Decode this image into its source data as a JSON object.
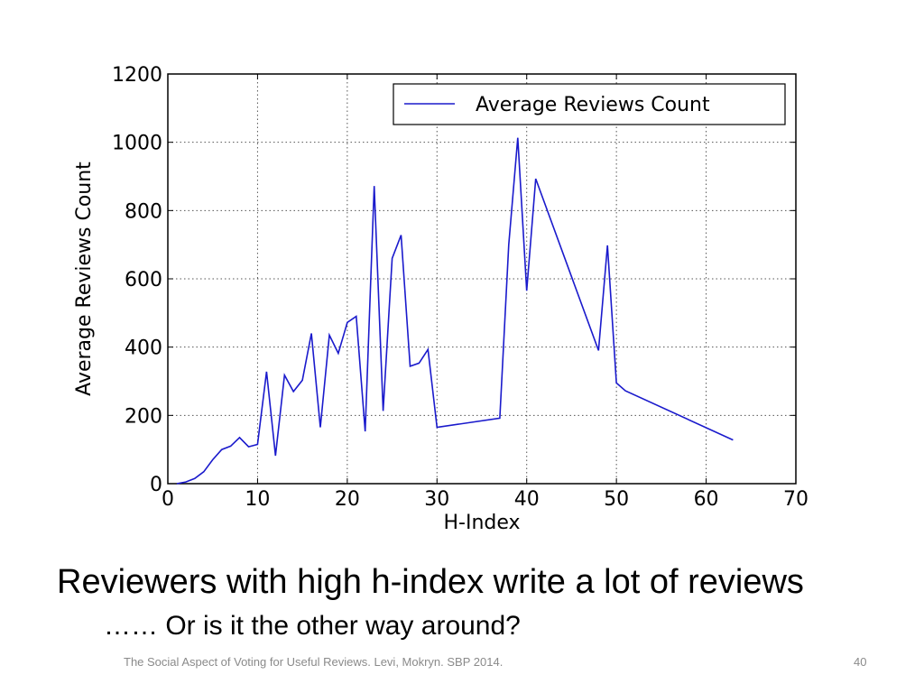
{
  "slide": {
    "headline": "Reviewers with high h-index write a lot of reviews",
    "subline": "…… Or is it the other way around?",
    "footer": "The Social Aspect of Voting for Useful Reviews. Levi, Mokryn. SBP 2014.",
    "page_number": "40"
  },
  "chart_data": {
    "type": "line",
    "title": "",
    "xlabel": "H-Index",
    "ylabel": "Average Reviews Count",
    "xlim": [
      0,
      70
    ],
    "ylim": [
      0,
      1200
    ],
    "xticks": [
      0,
      10,
      20,
      30,
      40,
      50,
      60,
      70
    ],
    "yticks": [
      0,
      200,
      400,
      600,
      800,
      1000,
      1200
    ],
    "grid": true,
    "legend_position": "top-right",
    "line_color": "#1a1acc",
    "series": [
      {
        "name": "Average Reviews Count",
        "x": [
          1,
          2,
          3,
          4,
          5,
          6,
          7,
          8,
          9,
          10,
          11,
          12,
          13,
          14,
          15,
          16,
          17,
          18,
          19,
          20,
          21,
          22,
          23,
          24,
          25,
          26,
          27,
          28,
          29,
          30,
          37,
          38,
          39,
          40,
          41,
          48,
          49,
          50,
          51,
          63
        ],
        "y": [
          0,
          5,
          15,
          35,
          70,
          100,
          110,
          135,
          108,
          115,
          328,
          82,
          318,
          270,
          303,
          440,
          165,
          435,
          382,
          472,
          490,
          153,
          872,
          213,
          660,
          728,
          344,
          353,
          393,
          165,
          192,
          700,
          1013,
          565,
          893,
          390,
          698,
          295,
          272,
          128
        ]
      }
    ]
  }
}
